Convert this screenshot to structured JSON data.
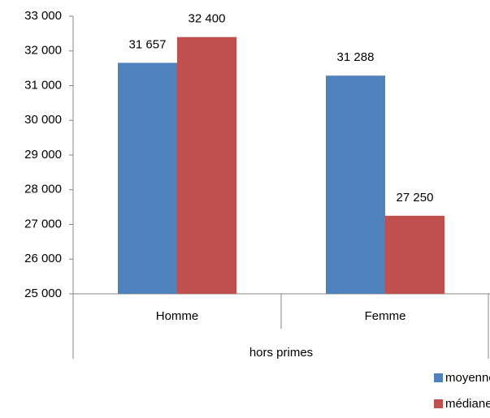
{
  "chart_data": {
    "type": "bar",
    "categories": [
      "Homme",
      "Femme"
    ],
    "group": "hors primes",
    "series": [
      {
        "name": "moyenne",
        "color": "#4f81bd",
        "values": [
          31657,
          31288
        ],
        "value_labels": [
          "31 657",
          "31 288"
        ]
      },
      {
        "name": "médiane",
        "color": "#c0504d",
        "values": [
          32400,
          27250
        ],
        "value_labels": [
          "32 400",
          "27 250"
        ]
      }
    ],
    "ylim": [
      25000,
      33000
    ],
    "yticks": [
      {
        "value": 25000,
        "label": "25 000"
      },
      {
        "value": 26000,
        "label": "26 000"
      },
      {
        "value": 27000,
        "label": "27 000"
      },
      {
        "value": 28000,
        "label": "28 000"
      },
      {
        "value": 29000,
        "label": "29 000"
      },
      {
        "value": 30000,
        "label": "30 000"
      },
      {
        "value": 31000,
        "label": "31 000"
      },
      {
        "value": 32000,
        "label": "32 000"
      },
      {
        "value": 33000,
        "label": "33 000"
      }
    ],
    "legend": "bottom-right"
  }
}
